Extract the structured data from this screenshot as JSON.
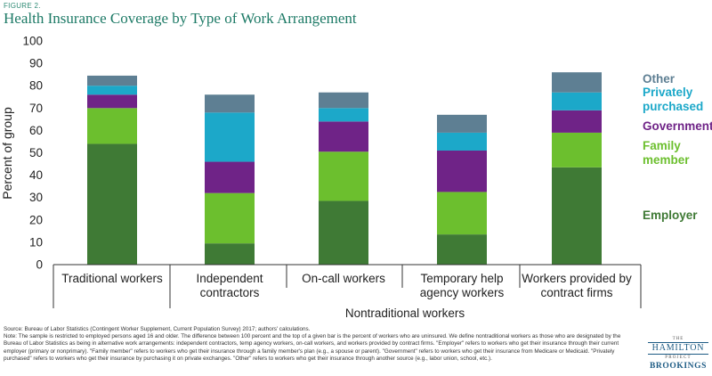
{
  "figure_label": "FIGURE 2.",
  "logo": {
    "the": "THE",
    "hamilton": "HAMILTON",
    "project": "PROJECT",
    "brookings": "BROOKINGS"
  },
  "notes": {
    "source": "Source: Bureau of Labor Statistics (Contingent Worker Supplement, Current Population Survey) 2017; authors' calculations.",
    "note": "Note: The sample is restricted to employed persons aged 16 and older. The difference between 100 percent and the top of a given bar is the percent of workers who are uninsured. We define nontraditional workers as those who are designated by the Bureau of Labor Statistics as being in alternative work arrangements: independent contractors, temp agency workers, on-call workers, and workers provided by contract firms. \"Employer\" refers to workers who get their insurance through their current employer (primary or nonprimary). \"Family member\" refers to workers who get their insurance through a family member's plan (e.g., a spouse or parent). \"Government\" refers to workers who get their insurance from Medicare or Medicaid. \"Privately purchased\" refers to workers who get their insurance by purchasing it on private exchanges. \"Other\" refers to workers who get their insurance through another source (e.g., labor union, school, etc.)."
  },
  "chart_data": {
    "type": "bar",
    "stacked": true,
    "title": "Health Insurance Coverage by Type of Work Arrangement",
    "ylabel": "Percent of group",
    "xlabel": "",
    "ylim": [
      0,
      100
    ],
    "yticks": [
      0,
      10,
      20,
      30,
      40,
      50,
      60,
      70,
      80,
      90,
      100
    ],
    "grid": false,
    "legend_position": "right",
    "categories": [
      "Traditional workers",
      "Independent contractors",
      "On-call workers",
      "Temporary help agency workers",
      "Workers provided by contract firms"
    ],
    "category_labels": [
      [
        "Traditional workers"
      ],
      [
        "Independent",
        "contractors"
      ],
      [
        "On-call workers"
      ],
      [
        "Temporary help",
        "agency workers"
      ],
      [
        "Workers provided by",
        "contract firms"
      ]
    ],
    "group_label": "Nontraditional workers",
    "series": [
      {
        "name": "Employer",
        "label_lines": [
          "Employer"
        ],
        "color": "#3f7a35",
        "values": [
          54,
          9.5,
          28.5,
          13.5,
          43.5
        ]
      },
      {
        "name": "Family member",
        "label_lines": [
          "Family",
          "member"
        ],
        "color": "#6cbf2e",
        "values": [
          16,
          22.5,
          22,
          19,
          15.5
        ]
      },
      {
        "name": "Government",
        "label_lines": [
          "Government"
        ],
        "color": "#6f2387",
        "values": [
          6,
          14,
          13.5,
          18.5,
          10
        ]
      },
      {
        "name": "Privately purchased",
        "label_lines": [
          "Privately",
          "purchased"
        ],
        "color": "#1ca8c9",
        "values": [
          4,
          22,
          6,
          8,
          8
        ]
      },
      {
        "name": "Other",
        "label_lines": [
          "Other"
        ],
        "color": "#5e7f93",
        "values": [
          4.5,
          8,
          7,
          8,
          9
        ]
      }
    ]
  }
}
